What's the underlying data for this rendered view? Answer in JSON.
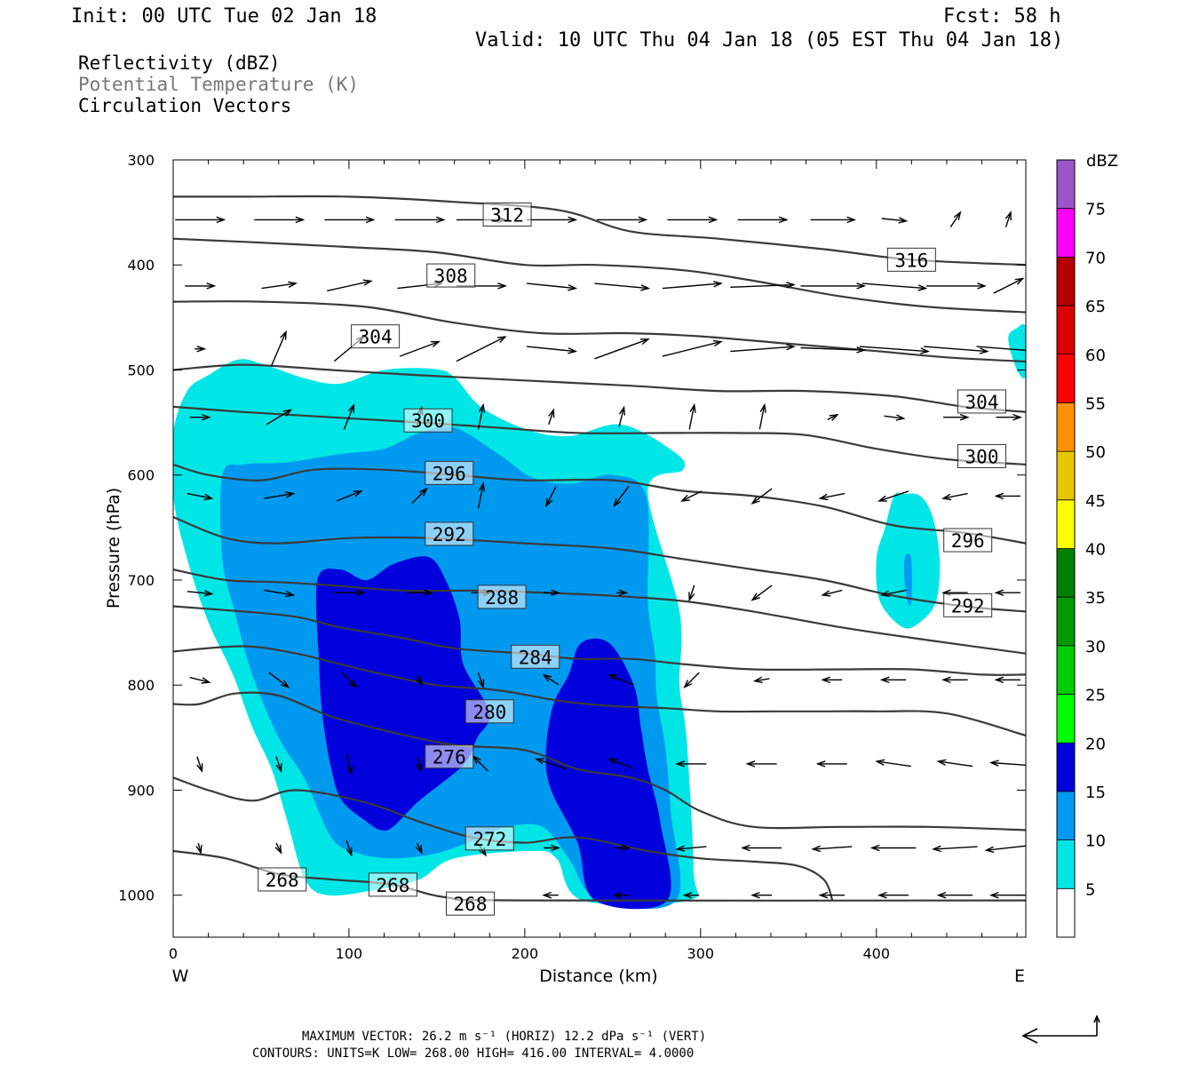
{
  "header": {
    "init": "Init: 00 UTC Tue 02 Jan 18",
    "fcst": "Fcst:   58 h",
    "valid": "Valid: 10 UTC Thu 04 Jan 18 (05 EST Thu 04 Jan 18)",
    "field1": "Reflectivity (dBZ)",
    "field2": "Potential Temperature (K)",
    "field3": "Circulation Vectors"
  },
  "footer": {
    "max_vector": "MAXIMUM VECTOR:  26.2 m s⁻¹ (HORIZ)         12.2 dPa s⁻¹ (VERT)",
    "contours": "CONTOURS:  UNITS=K  LOW=  268.00       HIGH=  416.00       INTERVAL=    4.0000"
  },
  "chart_data": {
    "type": "cross-section",
    "xlabel": "Distance (km)",
    "ylabel": "Pressure (hPa)",
    "xlim": [
      0,
      485
    ],
    "ylim": [
      1040,
      300
    ],
    "x_ticks": [
      "0",
      "100",
      "200",
      "300",
      "400"
    ],
    "y_ticks": [
      "300",
      "400",
      "500",
      "600",
      "700",
      "800",
      "900",
      "1000"
    ],
    "x_end_labels": [
      "W",
      "E"
    ],
    "colorbar": {
      "unit": "dBZ",
      "levels": [
        "5",
        "10",
        "15",
        "20",
        "25",
        "30",
        "35",
        "40",
        "45",
        "50",
        "55",
        "60",
        "65",
        "70",
        "75"
      ],
      "colors": [
        "#00e6e6",
        "#0099f0",
        "#0000dd",
        "#00ff00",
        "#00cc00",
        "#009900",
        "#008000",
        "#ffff00",
        "#e6c800",
        "#ff9000",
        "#ff0000",
        "#dd0000",
        "#b40000",
        "#ff00ff",
        "#9a55c8"
      ]
    },
    "theta_labels": [
      "312",
      "316",
      "308",
      "304",
      "304",
      "300",
      "300",
      "296",
      "296",
      "292",
      "292",
      "288",
      "284",
      "280",
      "276",
      "272",
      "268",
      "268",
      "268"
    ],
    "theta_contours": [
      {
        "label": "268",
        "points": [
          [
            0,
            958
          ],
          [
            30,
            965
          ],
          [
            60,
            980
          ],
          [
            90,
            985
          ],
          [
            125,
            990
          ],
          [
            155,
            1002
          ],
          [
            200,
            1005
          ],
          [
            485,
            1005
          ]
        ]
      },
      {
        "label": "272",
        "points": [
          [
            0,
            888
          ],
          [
            20,
            900
          ],
          [
            45,
            910
          ],
          [
            70,
            900
          ],
          [
            110,
            912
          ],
          [
            140,
            930
          ],
          [
            170,
            945
          ],
          [
            200,
            950
          ],
          [
            230,
            945
          ],
          [
            270,
            958
          ],
          [
            300,
            965
          ],
          [
            330,
            968
          ],
          [
            355,
            972
          ],
          [
            370,
            985
          ],
          [
            375,
            1005
          ]
        ]
      },
      {
        "label": "276",
        "points": [
          [
            0,
            818
          ],
          [
            15,
            818
          ],
          [
            35,
            808
          ],
          [
            60,
            810
          ],
          [
            90,
            830
          ],
          [
            125,
            845
          ],
          [
            160,
            857
          ],
          [
            200,
            862
          ],
          [
            230,
            880
          ],
          [
            260,
            888
          ],
          [
            280,
            900
          ],
          [
            300,
            920
          ],
          [
            330,
            935
          ],
          [
            380,
            935
          ],
          [
            430,
            935
          ],
          [
            485,
            938
          ]
        ]
      },
      {
        "label": "280",
        "points": [
          [
            0,
            768
          ],
          [
            40,
            763
          ],
          [
            70,
            770
          ],
          [
            95,
            780
          ],
          [
            120,
            790
          ],
          [
            150,
            800
          ],
          [
            185,
            805
          ],
          [
            220,
            815
          ],
          [
            250,
            820
          ],
          [
            280,
            822
          ],
          [
            310,
            825
          ],
          [
            340,
            825
          ],
          [
            370,
            825
          ],
          [
            400,
            825
          ],
          [
            440,
            827
          ],
          [
            485,
            848
          ]
        ]
      },
      {
        "label": "284",
        "points": [
          [
            0,
            725
          ],
          [
            40,
            730
          ],
          [
            70,
            735
          ],
          [
            95,
            745
          ],
          [
            130,
            755
          ],
          [
            160,
            765
          ],
          [
            200,
            770
          ],
          [
            230,
            775
          ],
          [
            260,
            775
          ],
          [
            290,
            780
          ],
          [
            330,
            785
          ],
          [
            380,
            785
          ],
          [
            420,
            785
          ],
          [
            460,
            790
          ],
          [
            485,
            790
          ]
        ]
      },
      {
        "label": "288",
        "points": [
          [
            0,
            690
          ],
          [
            30,
            700
          ],
          [
            60,
            702
          ],
          [
            90,
            705
          ],
          [
            130,
            710
          ],
          [
            175,
            710
          ],
          [
            210,
            712
          ],
          [
            250,
            715
          ],
          [
            290,
            720
          ],
          [
            330,
            730
          ],
          [
            380,
            745
          ],
          [
            420,
            755
          ],
          [
            485,
            770
          ]
        ]
      },
      {
        "label": "292",
        "points": [
          [
            0,
            640
          ],
          [
            30,
            660
          ],
          [
            60,
            665
          ],
          [
            100,
            660
          ],
          [
            145,
            660
          ],
          [
            200,
            665
          ],
          [
            250,
            670
          ],
          [
            290,
            680
          ],
          [
            330,
            690
          ],
          [
            370,
            700
          ],
          [
            410,
            715
          ],
          [
            450,
            725
          ],
          [
            485,
            730
          ]
        ]
      },
      {
        "label": "296",
        "points": [
          [
            0,
            590
          ],
          [
            20,
            600
          ],
          [
            50,
            605
          ],
          [
            80,
            595
          ],
          [
            120,
            595
          ],
          [
            160,
            600
          ],
          [
            200,
            605
          ],
          [
            250,
            605
          ],
          [
            290,
            615
          ],
          [
            330,
            620
          ],
          [
            370,
            630
          ],
          [
            410,
            648
          ],
          [
            450,
            655
          ],
          [
            485,
            665
          ]
        ]
      },
      {
        "label": "300",
        "points": [
          [
            0,
            535
          ],
          [
            40,
            540
          ],
          [
            90,
            545
          ],
          [
            140,
            550
          ],
          [
            185,
            555
          ],
          [
            230,
            560
          ],
          [
            280,
            560
          ],
          [
            320,
            560
          ],
          [
            360,
            562
          ],
          [
            400,
            575
          ],
          [
            440,
            585
          ],
          [
            485,
            590
          ]
        ]
      },
      {
        "label": "304",
        "points": [
          [
            0,
            500
          ],
          [
            40,
            495
          ],
          [
            90,
            500
          ],
          [
            140,
            505
          ],
          [
            200,
            510
          ],
          [
            260,
            515
          ],
          [
            310,
            520
          ],
          [
            360,
            520
          ],
          [
            410,
            525
          ],
          [
            450,
            535
          ],
          [
            485,
            540
          ]
        ]
      },
      {
        "label": "308",
        "points": [
          [
            0,
            435
          ],
          [
            50,
            435
          ],
          [
            110,
            440
          ],
          [
            160,
            455
          ],
          [
            210,
            465
          ],
          [
            260,
            465
          ],
          [
            300,
            468
          ],
          [
            350,
            475
          ],
          [
            400,
            482
          ],
          [
            440,
            488
          ],
          [
            485,
            492
          ]
        ]
      },
      {
        "label": "312",
        "points": [
          [
            0,
            375
          ],
          [
            40,
            378
          ],
          [
            100,
            383
          ],
          [
            150,
            388
          ],
          [
            200,
            400
          ],
          [
            240,
            400
          ],
          [
            290,
            405
          ],
          [
            330,
            415
          ],
          [
            380,
            430
          ],
          [
            430,
            440
          ],
          [
            485,
            445
          ]
        ]
      },
      {
        "label": "316",
        "points": [
          [
            0,
            335
          ],
          [
            40,
            335
          ],
          [
            100,
            335
          ],
          [
            160,
            340
          ],
          [
            220,
            348
          ],
          [
            260,
            368
          ],
          [
            310,
            375
          ],
          [
            370,
            385
          ],
          [
            420,
            395
          ],
          [
            485,
            400
          ]
        ]
      }
    ],
    "reflectivity_contours": [
      {
        "dbz": 5,
        "points": [
          [
            0,
            560
          ],
          [
            8,
            520
          ],
          [
            20,
            505
          ],
          [
            37,
            490
          ],
          [
            52,
            495
          ],
          [
            75,
            508
          ],
          [
            95,
            513
          ],
          [
            120,
            500
          ],
          [
            148,
            499
          ],
          [
            160,
            507
          ],
          [
            175,
            535
          ],
          [
            200,
            556
          ],
          [
            225,
            563
          ],
          [
            255,
            552
          ],
          [
            285,
            578
          ],
          [
            290,
            595
          ],
          [
            270,
            615
          ],
          [
            288,
            730
          ],
          [
            288,
            800
          ],
          [
            292,
            850
          ],
          [
            296,
            975
          ],
          [
            293,
            1005
          ],
          [
            233,
            1005
          ],
          [
            218,
            965
          ],
          [
            204,
            958
          ],
          [
            160,
            965
          ],
          [
            140,
            985
          ],
          [
            115,
            995
          ],
          [
            88,
            1000
          ],
          [
            75,
            985
          ],
          [
            65,
            930
          ],
          [
            56,
            880
          ],
          [
            45,
            840
          ],
          [
            34,
            790
          ],
          [
            20,
            740
          ],
          [
            8,
            680
          ],
          [
            0,
            620
          ]
        ]
      },
      {
        "dbz": 10,
        "points": [
          [
            28,
            600
          ],
          [
            40,
            590
          ],
          [
            65,
            588
          ],
          [
            95,
            580
          ],
          [
            120,
            575
          ],
          [
            140,
            560
          ],
          [
            160,
            555
          ],
          [
            185,
            580
          ],
          [
            205,
            603
          ],
          [
            227,
            608
          ],
          [
            250,
            600
          ],
          [
            269,
            620
          ],
          [
            270,
            720
          ],
          [
            274,
            770
          ],
          [
            275,
            810
          ],
          [
            280,
            860
          ],
          [
            283,
            920
          ],
          [
            286,
            1005
          ],
          [
            242,
            1005
          ],
          [
            225,
            965
          ],
          [
            210,
            935
          ],
          [
            190,
            935
          ],
          [
            175,
            945
          ],
          [
            150,
            960
          ],
          [
            125,
            965
          ],
          [
            105,
            960
          ],
          [
            90,
            945
          ],
          [
            75,
            890
          ],
          [
            60,
            850
          ],
          [
            45,
            790
          ],
          [
            35,
            730
          ],
          [
            28,
            680
          ]
        ]
      },
      {
        "dbz": 15,
        "points": [
          [
            82,
            700
          ],
          [
            95,
            690
          ],
          [
            110,
            700
          ],
          [
            125,
            685
          ],
          [
            145,
            678
          ],
          [
            155,
            700
          ],
          [
            163,
            738
          ],
          [
            165,
            780
          ],
          [
            180,
            826
          ],
          [
            173,
            850
          ],
          [
            165,
            876
          ],
          [
            140,
            910
          ],
          [
            125,
            935
          ],
          [
            118,
            938
          ],
          [
            110,
            930
          ],
          [
            96,
            910
          ],
          [
            90,
            880
          ],
          [
            85,
            830
          ],
          [
            83,
            780
          ]
        ]
      },
      {
        "dbz": 15,
        "points": [
          [
            232,
            760
          ],
          [
            248,
            760
          ],
          [
            262,
            800
          ],
          [
            266,
            840
          ],
          [
            270,
            880
          ],
          [
            277,
            930
          ],
          [
            281,
            1005
          ],
          [
            240,
            1005
          ],
          [
            230,
            950
          ],
          [
            215,
            900
          ],
          [
            212,
            865
          ],
          [
            216,
            820
          ],
          [
            225,
            790
          ]
        ]
      },
      {
        "dbz": 5,
        "points": [
          [
            405,
            650
          ],
          [
            410,
            620
          ],
          [
            415,
            618
          ],
          [
            425,
            620
          ],
          [
            432,
            640
          ],
          [
            436,
            680
          ],
          [
            434,
            720
          ],
          [
            425,
            740
          ],
          [
            415,
            745
          ],
          [
            402,
            720
          ],
          [
            400,
            680
          ]
        ]
      },
      {
        "dbz": 10,
        "points": [
          [
            416,
            680
          ],
          [
            418,
            675
          ],
          [
            420,
            682
          ],
          [
            420,
            720
          ],
          [
            418,
            722
          ],
          [
            416,
            700
          ]
        ]
      },
      {
        "dbz": 5,
        "points": [
          [
            475,
            470
          ],
          [
            480,
            460
          ],
          [
            485,
            460
          ],
          [
            485,
            505
          ],
          [
            480,
            500
          ]
        ]
      }
    ]
  }
}
